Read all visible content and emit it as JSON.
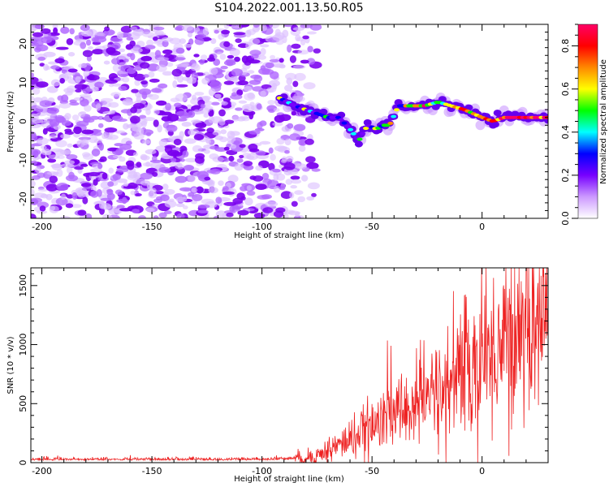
{
  "title": "S104.2022.001.13.50.R05",
  "chart_data": [
    {
      "type": "heatmap",
      "xlabel": "Height of straight line (km)",
      "ylabel": "Frequency (Hz)",
      "xlim": [
        -205,
        30
      ],
      "ylim": [
        -25,
        25
      ],
      "xticks": [
        -200,
        -150,
        -100,
        -50,
        0
      ],
      "yticks": [
        -20,
        -10,
        0,
        10,
        20
      ],
      "noise_region": {
        "x": [
          -205,
          -75
        ],
        "y": [
          -25,
          25
        ]
      },
      "ridge": {
        "x": [
          -92,
          -85,
          -80,
          -75,
          -70,
          -65,
          -60,
          -56,
          -52,
          -48,
          -45,
          -42,
          -38,
          -32,
          -26,
          -20,
          -14,
          -8,
          -4,
          0,
          5,
          10,
          15,
          20,
          25,
          30
        ],
        "y": [
          6,
          4,
          3,
          2,
          1,
          1,
          -2,
          -5,
          -1,
          -2,
          -1,
          -1,
          4,
          4,
          4,
          5,
          4,
          3,
          2,
          1,
          0,
          1,
          1,
          1,
          1,
          1
        ]
      },
      "colorbar": {
        "label": "Normalized spectral amplitude",
        "range": [
          0,
          0.9
        ],
        "ticks": [
          0.0,
          0.2,
          0.4,
          0.6,
          0.8
        ],
        "colormap": [
          "#ffffff",
          "#cc99ff",
          "#7700ff",
          "#0000ff",
          "#00ffff",
          "#00ff00",
          "#ffff00",
          "#ff8800",
          "#ff0000",
          "#ff0066"
        ]
      }
    },
    {
      "type": "line",
      "xlabel": "Height of straight line (km)",
      "ylabel": "SNR (10 * v/v)",
      "xlim": [
        -205,
        30
      ],
      "ylim": [
        0,
        1650
      ],
      "xticks": [
        -200,
        -150,
        -100,
        -50,
        0
      ],
      "yticks": [
        0,
        500,
        1000,
        1500
      ],
      "color": "#ee2222",
      "trend": {
        "x": [
          -205,
          -100,
          -85,
          -75,
          -65,
          -55,
          -45,
          -35,
          -25,
          -15,
          -5,
          5,
          15,
          25,
          30
        ],
        "y": [
          20,
          20,
          30,
          60,
          150,
          250,
          350,
          450,
          550,
          650,
          800,
          950,
          1100,
          1250,
          1320
        ]
      }
    }
  ]
}
